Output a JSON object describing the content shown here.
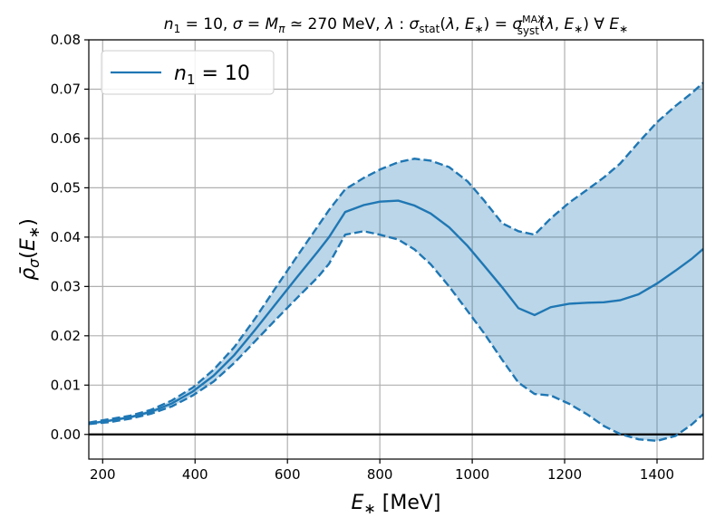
{
  "chart_data": {
    "type": "line",
    "title": "n₁ = 10, σ = Mπ ≃ 270 MeV, λ : σstat(λ, E∗) = σsystMAX(λ, E∗) ∀ E∗",
    "xlabel": "E∗  [MeV]",
    "ylabel": "ρ̄σ(E∗)",
    "xlim": [
      170,
      1500
    ],
    "ylim": [
      -0.005,
      0.08
    ],
    "xticks": [
      200,
      400,
      600,
      800,
      1000,
      1200,
      1400
    ],
    "yticks": [
      0.0,
      0.01,
      0.02,
      0.03,
      0.04,
      0.05,
      0.06,
      0.07,
      0.08
    ],
    "ytick_labels": [
      "0.00",
      "0.01",
      "0.02",
      "0.03",
      "0.04",
      "0.05",
      "0.06",
      "0.07",
      "0.08"
    ],
    "grid": true,
    "legend": {
      "position": "top-left",
      "entries": [
        "n₁ = 10"
      ]
    },
    "colors": {
      "series": "#1f77b4",
      "band": "#1f77b4",
      "zero_line": "#000000",
      "grid": "#b0b0b0"
    },
    "series": [
      {
        "name": "n₁ = 10",
        "x": [
          170,
          215,
          260,
          305,
          350,
          395,
          440,
          485,
          530,
          575,
          620,
          665,
          690,
          725,
          765,
          800,
          840,
          875,
          910,
          950,
          990,
          1025,
          1065,
          1100,
          1135,
          1170,
          1210,
          1250,
          1285,
          1320,
          1360,
          1400,
          1440,
          1475,
          1500
        ],
        "central": [
          0.0022,
          0.0028,
          0.0035,
          0.0046,
          0.0063,
          0.0087,
          0.0119,
          0.0161,
          0.0212,
          0.0265,
          0.0318,
          0.037,
          0.04,
          0.0451,
          0.0465,
          0.0472,
          0.0474,
          0.0464,
          0.0448,
          0.042,
          0.0382,
          0.0343,
          0.0298,
          0.0256,
          0.0242,
          0.0258,
          0.0265,
          0.0267,
          0.0268,
          0.0272,
          0.0284,
          0.0306,
          0.0332,
          0.0356,
          0.0376
        ],
        "upper": [
          0.0024,
          0.0031,
          0.0038,
          0.005,
          0.0069,
          0.0095,
          0.0131,
          0.0177,
          0.0235,
          0.0298,
          0.036,
          0.0421,
          0.0455,
          0.0497,
          0.052,
          0.0537,
          0.0552,
          0.0559,
          0.0555,
          0.0542,
          0.0513,
          0.0475,
          0.0428,
          0.0412,
          0.0405,
          0.0438,
          0.047,
          0.0497,
          0.0521,
          0.0549,
          0.0592,
          0.0633,
          0.0666,
          0.0692,
          0.0713
        ],
        "lower": [
          0.0021,
          0.0025,
          0.0032,
          0.0042,
          0.0057,
          0.0079,
          0.0107,
          0.0145,
          0.0189,
          0.0233,
          0.0276,
          0.0318,
          0.0346,
          0.0405,
          0.0412,
          0.0405,
          0.0395,
          0.0375,
          0.0345,
          0.03,
          0.025,
          0.0206,
          0.0151,
          0.0105,
          0.0082,
          0.0079,
          0.0062,
          0.004,
          0.0017,
          0.0001,
          -0.001,
          -0.0013,
          -0.0003,
          0.002,
          0.0041
        ]
      }
    ]
  }
}
